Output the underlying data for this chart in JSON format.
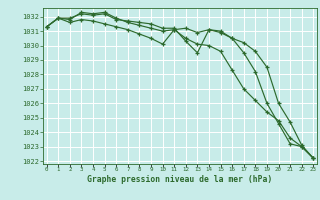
{
  "background_color": "#c8ece9",
  "grid_color": "#b0d8d4",
  "line_color": "#2d6a2d",
  "spine_color": "#2d6a2d",
  "title": "Graphe pression niveau de la mer (hPa)",
  "xlim": [
    -0.3,
    23.3
  ],
  "ylim": [
    1021.8,
    1032.6
  ],
  "yticks": [
    1022,
    1023,
    1024,
    1025,
    1026,
    1027,
    1028,
    1029,
    1030,
    1031,
    1032
  ],
  "xticks": [
    0,
    1,
    2,
    3,
    4,
    5,
    6,
    7,
    8,
    9,
    10,
    11,
    12,
    13,
    14,
    15,
    16,
    17,
    18,
    19,
    20,
    21,
    22,
    23
  ],
  "hours": [
    0,
    1,
    2,
    3,
    4,
    5,
    6,
    7,
    8,
    9,
    10,
    11,
    12,
    13,
    14,
    15,
    16,
    17,
    18,
    19,
    20,
    21,
    22,
    23
  ],
  "line1": [
    1031.3,
    1031.9,
    1031.9,
    1032.2,
    1032.1,
    1032.2,
    1031.8,
    1031.7,
    1031.6,
    1031.5,
    1031.2,
    1031.2,
    1030.3,
    1029.5,
    1031.1,
    1031.0,
    1030.5,
    1030.2,
    1029.6,
    1028.5,
    1026.0,
    1024.7,
    1023.1,
    1022.2
  ],
  "line2": [
    1031.3,
    1031.9,
    1031.8,
    1032.3,
    1032.2,
    1032.3,
    1031.9,
    1031.6,
    1031.4,
    1031.2,
    1031.0,
    1031.1,
    1030.5,
    1030.1,
    1030.0,
    1029.6,
    1028.3,
    1027.0,
    1026.2,
    1025.4,
    1024.8,
    1023.6,
    1023.0,
    1022.2
  ],
  "line3": [
    1031.3,
    1031.9,
    1031.6,
    1031.8,
    1031.7,
    1031.5,
    1031.3,
    1031.1,
    1030.8,
    1030.5,
    1030.1,
    1031.1,
    1031.2,
    1030.9,
    1031.1,
    1030.9,
    1030.5,
    1029.5,
    1028.2,
    1026.0,
    1024.6,
    1023.2,
    1023.0,
    1022.2
  ]
}
